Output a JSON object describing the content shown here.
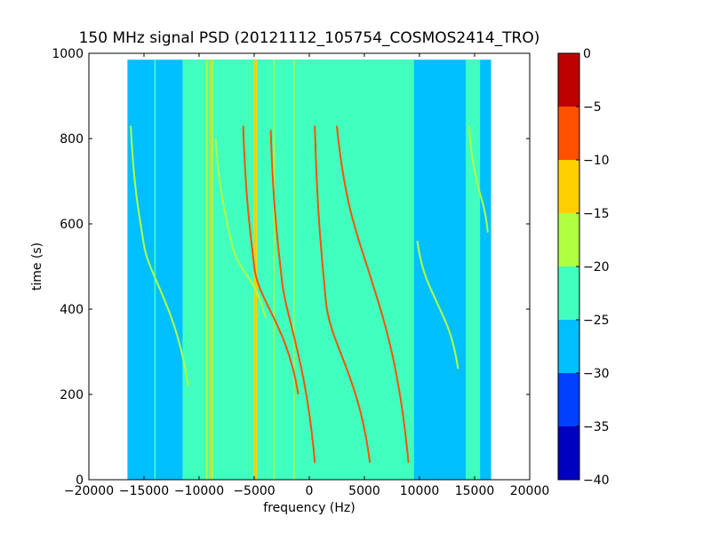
{
  "chart_data": {
    "type": "heatmap",
    "title": "150 MHz signal PSD (20121112_105754_COSMOS2414_TRO)",
    "xlabel": "frequency (Hz)",
    "ylabel": "time (s)",
    "xlim": [
      -20000,
      20000
    ],
    "ylim": [
      0,
      1000
    ],
    "xticks": [
      -20000,
      -15000,
      -10000,
      -5000,
      0,
      5000,
      10000,
      15000,
      20000
    ],
    "xtick_labels": [
      "−20000",
      "−15000",
      "−10000",
      "−5000",
      "0",
      "5000",
      "10000",
      "15000",
      "20000"
    ],
    "yticks": [
      0,
      200,
      400,
      600,
      800,
      1000
    ],
    "ytick_labels": [
      "0",
      "200",
      "400",
      "600",
      "800",
      "1000"
    ],
    "data_extent": {
      "x": [
        -16500,
        16500
      ],
      "y": [
        0,
        985
      ]
    },
    "background_level": -27,
    "bands": [
      {
        "x": [
          -11500,
          9500
        ],
        "level": -22.5
      },
      {
        "x": [
          14200,
          15500
        ],
        "level": -22.5
      }
    ],
    "vertical_lines": [
      {
        "x": -9300,
        "level": -17
      },
      {
        "x": -9000,
        "level": -15
      },
      {
        "x": -8800,
        "level": -17
      },
      {
        "x": -5000,
        "level": -13
      },
      {
        "x": -4800,
        "level": -15
      },
      {
        "x": -3200,
        "level": -16
      },
      {
        "x": -1400,
        "level": -16
      },
      {
        "x": -11000,
        "level": -24
      },
      {
        "x": -14000,
        "level": -24
      }
    ],
    "traces": [
      {
        "x_center": -5000,
        "x_top": -6000,
        "x_bottom": -1000,
        "y_top": 830,
        "y_bottom": 200,
        "y_center": 500,
        "level": -10
      },
      {
        "x_center": -2500,
        "x_top": -3500,
        "x_bottom": 500,
        "y_top": 820,
        "y_bottom": 40,
        "y_center": 470,
        "level": -8
      },
      {
        "x_center": 1500,
        "x_top": 500,
        "x_bottom": 5500,
        "y_top": 830,
        "y_bottom": 40,
        "y_center": 420,
        "level": -7
      },
      {
        "x_center": 5500,
        "x_top": 2500,
        "x_bottom": 9000,
        "y_top": 830,
        "y_bottom": 40,
        "y_center": 480,
        "level": -6
      },
      {
        "x_center": -7000,
        "x_top": -8500,
        "x_bottom": -4000,
        "y_top": 800,
        "y_bottom": 380,
        "y_center": 550,
        "level": -17
      },
      {
        "x_center": -15000,
        "x_top": -16200,
        "x_bottom": -11000,
        "y_top": 830,
        "y_bottom": 220,
        "y_center": 550,
        "level": -17
      },
      {
        "x_center": 11500,
        "x_top": 9800,
        "x_bottom": 13500,
        "y_top": 560,
        "y_bottom": 260,
        "y_center": 420,
        "level": -17
      },
      {
        "x_center": 15200,
        "x_top": 14500,
        "x_bottom": 16200,
        "y_top": 830,
        "y_bottom": 580,
        "y_center": 700,
        "level": -18
      }
    ],
    "colorbar": {
      "ticks": [
        0,
        -5,
        -10,
        -15,
        -20,
        -25,
        -30,
        -35,
        -40
      ],
      "tick_labels": [
        "0",
        "−5",
        "−10",
        "−15",
        "−20",
        "−25",
        "−30",
        "−35",
        "−40"
      ],
      "levels": [
        {
          "from": -40,
          "to": -35,
          "color": "#0000bf"
        },
        {
          "from": -35,
          "to": -30,
          "color": "#0040ff"
        },
        {
          "from": -30,
          "to": -25,
          "color": "#00bfff"
        },
        {
          "from": -25,
          "to": -20,
          "color": "#40ffbf"
        },
        {
          "from": -20,
          "to": -15,
          "color": "#b0ff40"
        },
        {
          "from": -15,
          "to": -10,
          "color": "#ffd000"
        },
        {
          "from": -10,
          "to": -5,
          "color": "#ff5000"
        },
        {
          "from": -5,
          "to": 0,
          "color": "#bf0000"
        }
      ]
    }
  }
}
